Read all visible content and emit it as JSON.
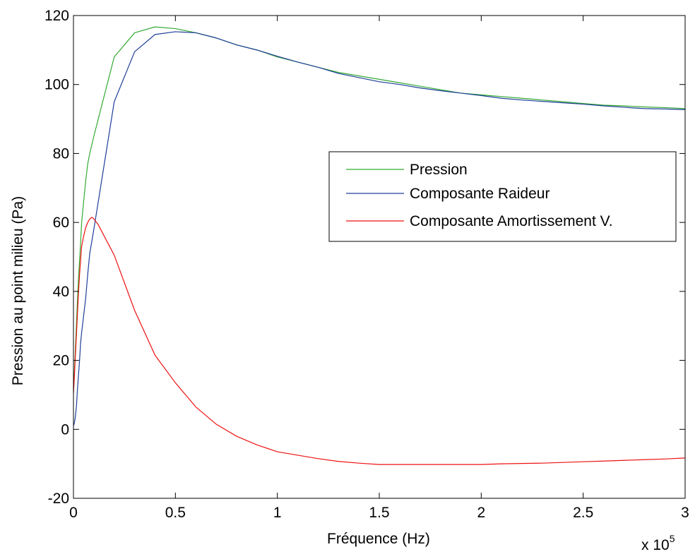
{
  "chart_data": {
    "type": "line",
    "title": "",
    "xlabel": "Fréquence (Hz)",
    "ylabel": "Pression au point milieu (Pa)",
    "x_multiplier_label": {
      "base": "x 10",
      "exponent": "5"
    },
    "xlim": [
      0,
      3
    ],
    "ylim": [
      -20,
      120
    ],
    "x_ticks": [
      0,
      0.5,
      1,
      1.5,
      2,
      2.5,
      3
    ],
    "x_tick_labels": [
      "0",
      "0.5",
      "1",
      "1.5",
      "2",
      "2.5",
      "3"
    ],
    "y_ticks": [
      -20,
      0,
      20,
      40,
      60,
      80,
      100,
      120
    ],
    "y_tick_labels": [
      "-20",
      "0",
      "20",
      "40",
      "60",
      "80",
      "100",
      "120"
    ],
    "grid": false,
    "legend_position": "center-right",
    "series": [
      {
        "name": "Pression",
        "color": "#33AA33",
        "x": [
          0,
          0.005,
          0.01,
          0.015,
          0.02,
          0.025,
          0.03,
          0.035,
          0.04,
          0.05,
          0.06,
          0.07,
          0.08,
          0.1,
          0.2,
          0.3,
          0.4,
          0.5,
          0.6,
          0.7,
          0.8,
          0.9,
          1.0,
          1.1,
          1.2,
          1.3,
          1.4,
          1.5,
          1.6,
          1.7,
          1.8,
          1.9,
          2.0,
          2.1,
          2.2,
          2.3,
          2.4,
          2.5,
          2.6,
          2.7,
          2.8,
          2.9,
          3.0
        ],
        "y": [
          11,
          17,
          24,
          31,
          38,
          44,
          49,
          54,
          60,
          66,
          72,
          77,
          80,
          85,
          108,
          115,
          116.7,
          116.2,
          115,
          113.5,
          111.5,
          110,
          108,
          106.5,
          105,
          103.5,
          102.5,
          101.5,
          100.5,
          99.5,
          98.5,
          97.5,
          97,
          96.5,
          96,
          95.5,
          95,
          94.5,
          94,
          93.8,
          93.5,
          93.3,
          93
        ]
      },
      {
        "name": "Composante Raideur",
        "color": "#1F3F99",
        "x": [
          0,
          0.005,
          0.01,
          0.015,
          0.02,
          0.025,
          0.03,
          0.035,
          0.04,
          0.05,
          0.06,
          0.07,
          0.08,
          0.1,
          0.2,
          0.3,
          0.4,
          0.5,
          0.6,
          0.7,
          0.8,
          0.9,
          1.0,
          1.1,
          1.2,
          1.3,
          1.4,
          1.5,
          1.6,
          1.7,
          1.8,
          1.9,
          2.0,
          2.1,
          2.2,
          2.3,
          2.4,
          2.5,
          2.6,
          2.7,
          2.8,
          2.9,
          3.0
        ],
        "y": [
          1,
          2,
          4,
          7,
          12,
          16,
          20,
          25,
          28,
          33,
          38,
          45,
          51,
          58,
          95,
          109.5,
          114.5,
          115.3,
          115,
          113.5,
          111.5,
          110,
          108.2,
          106.5,
          105,
          103.2,
          102,
          100.8,
          100,
          99,
          98.2,
          97.5,
          96.8,
          96,
          95.5,
          95.1,
          94.7,
          94.3,
          93.8,
          93.4,
          93,
          92.9,
          92.7
        ]
      },
      {
        "name": "Composante Amortissement V.",
        "color": "#EE1111",
        "x": [
          0,
          0.005,
          0.01,
          0.015,
          0.02,
          0.025,
          0.03,
          0.035,
          0.04,
          0.05,
          0.06,
          0.07,
          0.08,
          0.09,
          0.1,
          0.12,
          0.2,
          0.3,
          0.4,
          0.5,
          0.6,
          0.7,
          0.8,
          0.9,
          1.0,
          1.1,
          1.2,
          1.3,
          1.4,
          1.5,
          1.6,
          1.7,
          1.8,
          1.9,
          2.0,
          2.1,
          2.2,
          2.3,
          2.4,
          2.5,
          2.6,
          2.7,
          2.8,
          2.9,
          3.0
        ],
        "y": [
          10.5,
          16,
          22,
          28,
          34,
          40,
          45,
          49,
          53,
          56,
          58.5,
          60,
          61,
          61.5,
          61,
          59.5,
          50.5,
          34.5,
          21.5,
          13.5,
          6.5,
          1.5,
          -2,
          -4.5,
          -6.5,
          -7.5,
          -8.5,
          -9.3,
          -9.8,
          -10.2,
          -10.2,
          -10.2,
          -10.2,
          -10.2,
          -10.2,
          -10,
          -9.9,
          -9.8,
          -9.6,
          -9.4,
          -9.2,
          -9,
          -8.8,
          -8.6,
          -8.3
        ]
      }
    ]
  }
}
